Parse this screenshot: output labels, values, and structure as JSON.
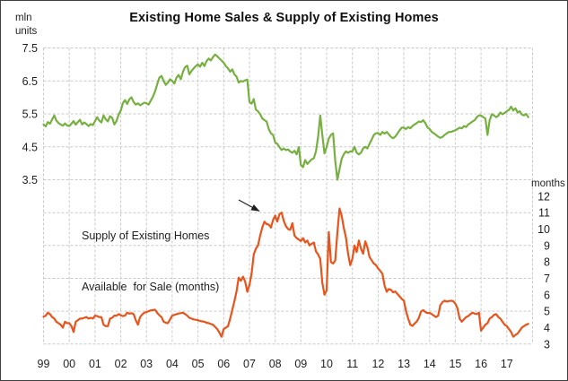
{
  "chart_data": {
    "type": "line",
    "title": "Existing Home Sales & Supply of Existing Homes",
    "x_axis": {
      "tick_labels": [
        "99",
        "00",
        "01",
        "02",
        "03",
        "04",
        "05",
        "06",
        "07",
        "08",
        "09",
        "10",
        "11",
        "12",
        "13",
        "14",
        "15",
        "16",
        "17"
      ],
      "start": "Jan 1999",
      "frequency": "monthly"
    },
    "left_axis": {
      "unit_lines": [
        "mln",
        "units"
      ],
      "ticks": [
        7.5,
        6.5,
        5.5,
        4.5,
        3.5
      ],
      "gridlines": [
        7.5,
        6.5,
        5.5,
        4.5,
        3.5
      ],
      "min": 3.5,
      "max": 7.5
    },
    "right_axis": {
      "unit_label": "months",
      "ticks": [
        12,
        11,
        10,
        9,
        8,
        7,
        6,
        5,
        4,
        3
      ],
      "gridlines": [
        11,
        9,
        7,
        5,
        3
      ],
      "min": 3,
      "max": 12
    },
    "annotation": {
      "lines": [
        "Supply of Existing Homes",
        "Available  for Sale (months)"
      ]
    },
    "grid": {
      "style": "dashed",
      "color": "#c9c9c9"
    },
    "series": [
      {
        "id": "sales",
        "name": "Existing Home Sales",
        "axis": "left",
        "unit": "mln units",
        "color": "#77B041",
        "values": [
          5.18,
          5.12,
          5.25,
          5.2,
          5.33,
          5.45,
          5.3,
          5.22,
          5.18,
          5.14,
          5.21,
          5.15,
          5.13,
          5.2,
          5.28,
          5.17,
          5.25,
          5.32,
          5.18,
          5.24,
          5.19,
          5.13,
          5.19,
          5.16,
          5.28,
          5.4,
          5.3,
          5.24,
          5.45,
          5.34,
          5.27,
          5.43,
          5.38,
          5.18,
          5.28,
          5.48,
          5.6,
          5.82,
          5.92,
          5.8,
          5.94,
          6.0,
          5.86,
          5.78,
          5.82,
          5.76,
          5.8,
          5.84,
          5.82,
          5.78,
          5.9,
          6.02,
          6.18,
          6.4,
          6.6,
          6.65,
          6.5,
          6.38,
          6.45,
          6.55,
          6.5,
          6.42,
          6.6,
          6.68,
          6.55,
          6.78,
          6.92,
          6.96,
          6.7,
          6.8,
          6.88,
          6.95,
          7.0,
          6.93,
          7.05,
          6.95,
          7.1,
          7.18,
          7.12,
          7.22,
          7.3,
          7.25,
          7.18,
          7.12,
          7.05,
          6.95,
          6.88,
          6.78,
          6.85,
          6.7,
          6.63,
          6.45,
          6.5,
          6.48,
          6.52,
          6.54,
          5.86,
          5.81,
          5.95,
          5.63,
          5.58,
          5.49,
          5.36,
          5.31,
          5.27,
          5.04,
          4.91,
          4.86,
          4.63,
          4.59,
          4.49,
          4.4,
          4.45,
          4.4,
          4.42,
          4.36,
          4.32,
          4.38,
          4.27,
          4.49,
          3.95,
          3.88,
          4.1,
          3.98,
          4.05,
          4.12,
          4.15,
          4.36,
          4.8,
          5.45,
          4.86,
          4.3,
          4.5,
          4.75,
          4.86,
          4.91,
          4.08,
          3.5,
          3.82,
          4.14,
          4.27,
          4.36,
          4.32,
          4.36,
          4.36,
          4.5,
          4.32,
          4.27,
          4.32,
          4.45,
          4.5,
          4.45,
          4.59,
          4.72,
          4.86,
          4.91,
          4.92,
          4.86,
          4.95,
          4.9,
          4.95,
          4.88,
          4.8,
          4.76,
          4.81,
          4.9,
          5.0,
          5.08,
          5.08,
          5.04,
          5.1,
          5.06,
          5.13,
          5.18,
          5.22,
          5.27,
          5.25,
          5.31,
          5.22,
          5.09,
          5.04,
          4.95,
          4.91,
          4.86,
          4.81,
          4.77,
          4.8,
          4.86,
          4.91,
          4.95,
          4.95,
          4.98,
          5.0,
          5.04,
          5.08,
          5.06,
          5.13,
          5.1,
          5.18,
          5.22,
          5.27,
          5.31,
          5.4,
          5.45,
          5.45,
          5.4,
          5.36,
          4.86,
          5.31,
          5.49,
          5.45,
          5.4,
          5.44,
          5.54,
          5.49,
          5.53,
          5.58,
          5.62,
          5.72,
          5.6,
          5.67,
          5.54,
          5.58,
          5.48,
          5.45,
          5.5,
          5.4
        ]
      },
      {
        "id": "supply",
        "name": "Supply of Existing Homes Available for Sale",
        "axis": "right",
        "unit": "months",
        "color": "#E8541C",
        "values": [
          4.67,
          4.73,
          4.91,
          4.82,
          4.64,
          4.55,
          4.36,
          4.27,
          4.18,
          4.0,
          4.36,
          4.27,
          4.27,
          4.09,
          3.73,
          4.36,
          4.45,
          4.55,
          4.55,
          4.6,
          4.64,
          4.55,
          4.6,
          4.55,
          4.73,
          4.7,
          4.64,
          4.64,
          4.18,
          4.09,
          4.09,
          4.55,
          4.6,
          4.73,
          4.73,
          4.82,
          4.75,
          4.7,
          4.73,
          4.91,
          4.85,
          4.88,
          4.82,
          4.45,
          4.18,
          4.64,
          4.8,
          4.91,
          4.95,
          5.0,
          5.05,
          5.07,
          5.09,
          4.9,
          4.75,
          4.64,
          4.36,
          4.3,
          4.27,
          4.5,
          4.73,
          4.78,
          4.82,
          4.86,
          4.88,
          4.91,
          4.82,
          4.73,
          4.6,
          4.55,
          4.5,
          4.48,
          4.45,
          4.4,
          4.38,
          4.36,
          4.3,
          4.27,
          4.22,
          4.18,
          4.05,
          3.91,
          3.7,
          3.45,
          3.91,
          4.0,
          4.09,
          4.55,
          5.09,
          5.6,
          6.2,
          7.04,
          6.85,
          7.1,
          6.8,
          6.18,
          6.6,
          7.3,
          8.46,
          8.8,
          9.0,
          9.6,
          10.1,
          10.45,
          10.3,
          10.27,
          10.09,
          10.55,
          10.82,
          10.45,
          10.9,
          11.0,
          10.5,
          10.18,
          10.0,
          9.95,
          10.36,
          9.6,
          9.45,
          9.36,
          9.27,
          9.45,
          9.18,
          9.3,
          9.0,
          9.1,
          9.18,
          8.64,
          8.45,
          8.18,
          6.73,
          6.0,
          6.27,
          9.82,
          8.0,
          7.9,
          8.09,
          9.8,
          11.25,
          10.8,
          10.07,
          9.5,
          8.5,
          7.8,
          8.2,
          9.0,
          8.6,
          9.3,
          8.8,
          8.5,
          9.25,
          8.9,
          8.3,
          8.1,
          7.9,
          7.8,
          7.6,
          7.45,
          7.27,
          6.55,
          6.18,
          6.35,
          6.3,
          6.15,
          6.2,
          6.05,
          5.9,
          5.75,
          5.64,
          5.0,
          4.55,
          4.18,
          4.1,
          4.25,
          4.37,
          4.6,
          4.98,
          5.07,
          4.95,
          4.89,
          4.9,
          4.82,
          4.73,
          4.64,
          4.73,
          5.37,
          5.55,
          5.64,
          5.58,
          5.62,
          5.64,
          5.6,
          5.46,
          5.18,
          4.55,
          4.36,
          4.5,
          4.64,
          4.7,
          4.82,
          4.91,
          4.85,
          4.82,
          4.91,
          3.82,
          4.0,
          4.18,
          4.27,
          4.55,
          4.64,
          4.78,
          4.82,
          4.64,
          4.55,
          4.36,
          4.18,
          4.09,
          3.91,
          3.73,
          3.45,
          3.55,
          3.64,
          3.82,
          4.0,
          4.09,
          4.18,
          4.23
        ]
      }
    ]
  }
}
